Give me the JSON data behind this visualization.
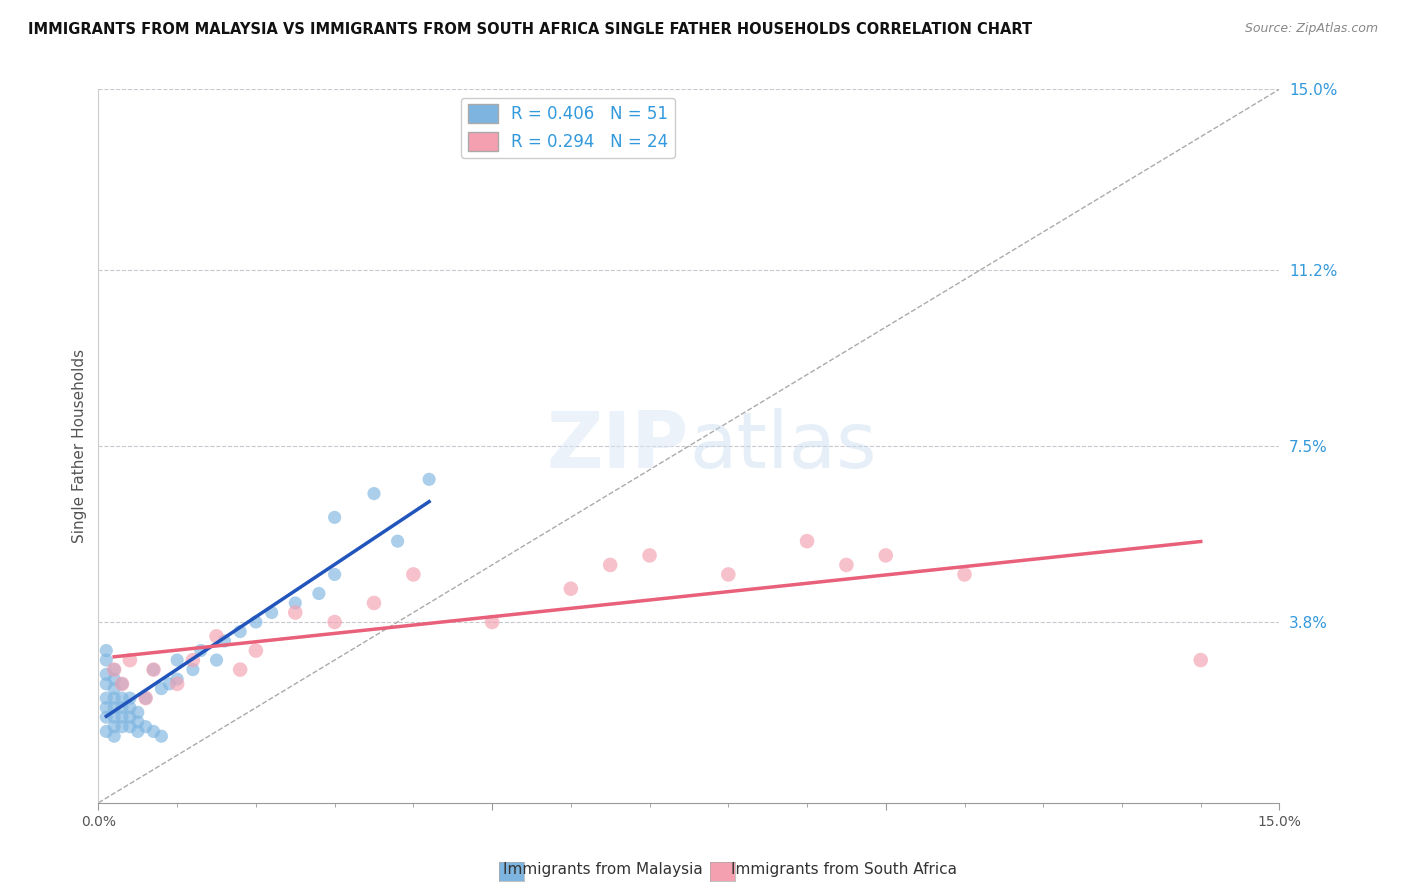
{
  "title": "IMMIGRANTS FROM MALAYSIA VS IMMIGRANTS FROM SOUTH AFRICA SINGLE FATHER HOUSEHOLDS CORRELATION CHART",
  "source": "Source: ZipAtlas.com",
  "ylabel": "Single Father Households",
  "xlim": [
    0,
    0.15
  ],
  "ylim": [
    0,
    0.15
  ],
  "right_yticks": [
    0.15,
    0.112,
    0.075,
    0.038
  ],
  "right_yticklabels": [
    "15.0%",
    "11.2%",
    "7.5%",
    "3.8%"
  ],
  "legend1_label": "R = 0.406   N = 51",
  "legend2_label": "R = 0.294   N = 24",
  "color_malaysia": "#7eb5e0",
  "color_sa": "#f4a0b0",
  "color_malaysia_line": "#2255bb",
  "color_sa_line": "#e8607a",
  "malaysia_x": [
    0.001,
    0.001,
    0.001,
    0.001,
    0.001,
    0.001,
    0.001,
    0.001,
    0.002,
    0.002,
    0.002,
    0.002,
    0.002,
    0.002,
    0.002,
    0.002,
    0.003,
    0.003,
    0.003,
    0.003,
    0.003,
    0.004,
    0.004,
    0.004,
    0.004,
    0.005,
    0.005,
    0.005,
    0.006,
    0.006,
    0.007,
    0.007,
    0.008,
    0.008,
    0.009,
    0.01,
    0.01,
    0.012,
    0.013,
    0.015,
    0.016,
    0.018,
    0.02,
    0.022,
    0.025,
    0.028,
    0.03,
    0.03,
    0.035,
    0.038,
    0.042
  ],
  "malaysia_y": [
    0.025,
    0.027,
    0.03,
    0.032,
    0.022,
    0.02,
    0.018,
    0.015,
    0.022,
    0.024,
    0.026,
    0.028,
    0.018,
    0.016,
    0.014,
    0.02,
    0.02,
    0.022,
    0.018,
    0.016,
    0.025,
    0.018,
    0.02,
    0.016,
    0.022,
    0.017,
    0.019,
    0.015,
    0.016,
    0.022,
    0.015,
    0.028,
    0.014,
    0.024,
    0.025,
    0.026,
    0.03,
    0.028,
    0.032,
    0.03,
    0.034,
    0.036,
    0.038,
    0.04,
    0.042,
    0.044,
    0.048,
    0.06,
    0.065,
    0.055,
    0.068
  ],
  "sa_x": [
    0.002,
    0.003,
    0.004,
    0.006,
    0.007,
    0.01,
    0.012,
    0.015,
    0.018,
    0.02,
    0.025,
    0.03,
    0.035,
    0.04,
    0.05,
    0.06,
    0.065,
    0.07,
    0.08,
    0.09,
    0.095,
    0.1,
    0.11,
    0.14
  ],
  "sa_y": [
    0.028,
    0.025,
    0.03,
    0.022,
    0.028,
    0.025,
    0.03,
    0.035,
    0.028,
    0.032,
    0.04,
    0.038,
    0.042,
    0.048,
    0.038,
    0.045,
    0.05,
    0.052,
    0.048,
    0.055,
    0.05,
    0.052,
    0.048,
    0.03
  ]
}
